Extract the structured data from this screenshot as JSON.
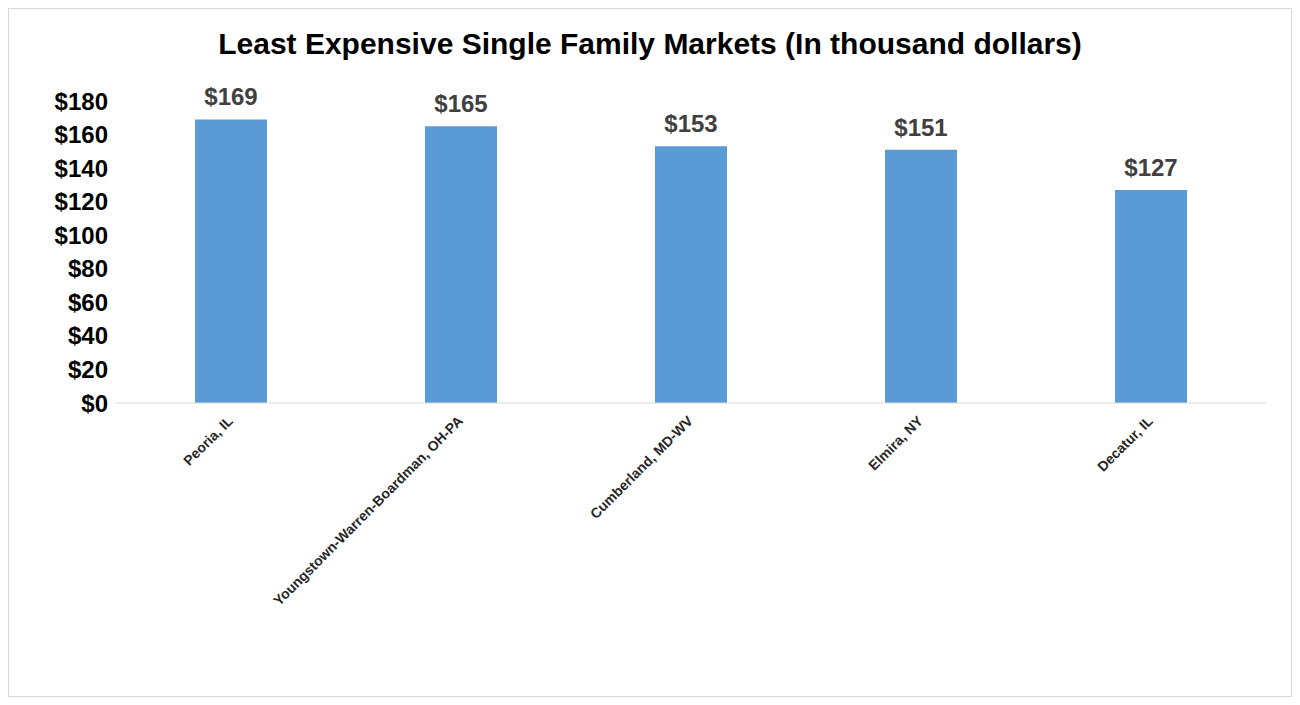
{
  "chart_data": {
    "type": "bar",
    "title": "Least Expensive Single Family Markets (In thousand dollars)",
    "categories": [
      "Peoria, IL",
      "Youngstown-Warren-Boardman, OH-PA",
      "Cumberland, MD-WV",
      "Elmira, NY",
      "Decatur, IL"
    ],
    "values": [
      169,
      165,
      153,
      151,
      127
    ],
    "value_labels": [
      "$169",
      "$165",
      "$153",
      "$151",
      "$127"
    ],
    "data_labels": true,
    "color": "#5b9bd5",
    "ylim": [
      0,
      180
    ],
    "yticks": [
      {
        "value": 0,
        "label": "$0"
      },
      {
        "value": 20,
        "label": "$20"
      },
      {
        "value": 40,
        "label": "$40"
      },
      {
        "value": 60,
        "label": "$60"
      },
      {
        "value": 80,
        "label": "$80"
      },
      {
        "value": 100,
        "label": "$100"
      },
      {
        "value": 120,
        "label": "$120"
      },
      {
        "value": 140,
        "label": "$140"
      },
      {
        "value": 160,
        "label": "$160"
      },
      {
        "value": 180,
        "label": "$180"
      }
    ],
    "grid": false
  }
}
